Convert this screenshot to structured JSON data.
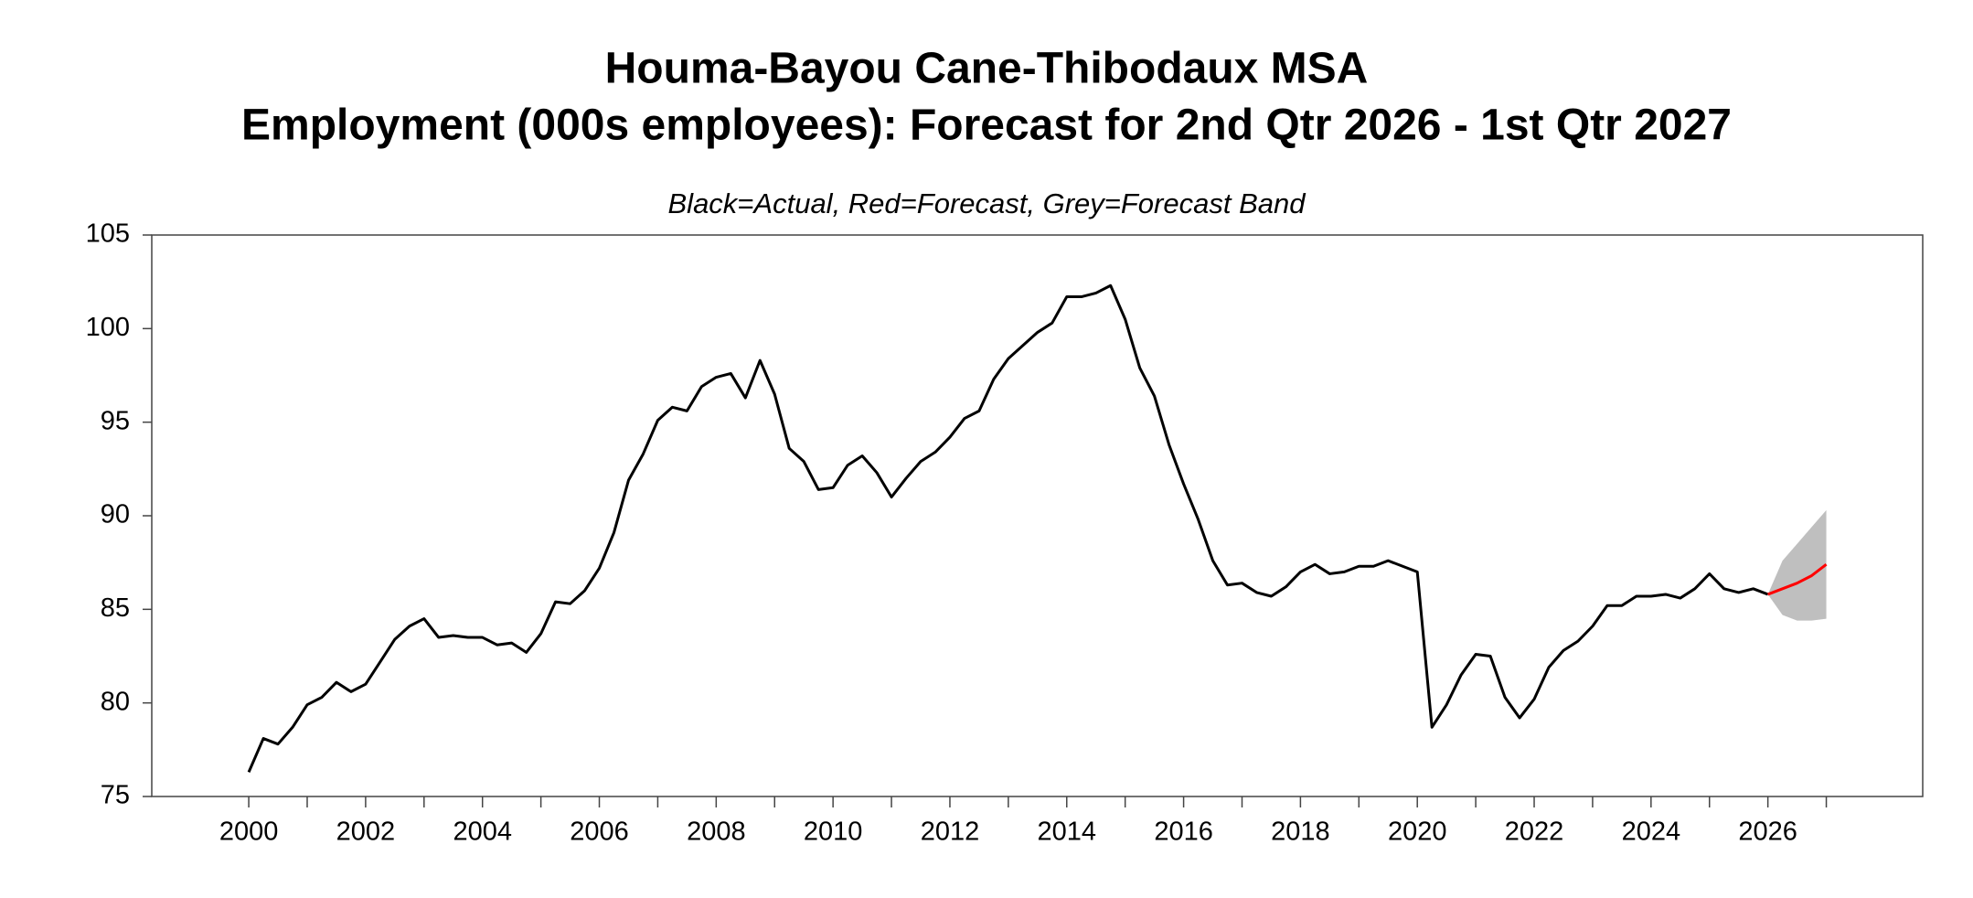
{
  "chart_data": {
    "type": "line",
    "title": "Houma-Bayou Cane-Thibodaux MSA",
    "subtitle": "Employment (000s employees): Forecast for 2nd Qtr 2026 - 1st Qtr 2027",
    "note": "Black=Actual, Red=Forecast, Grey=Forecast Band",
    "xlim": [
      1998.34,
      2028.65
    ],
    "ylim": [
      75,
      105
    ],
    "xticks": [
      2000,
      2002,
      2004,
      2006,
      2008,
      2010,
      2012,
      2014,
      2016,
      2018,
      2020,
      2022,
      2024,
      2026
    ],
    "xminor_ticks": [
      2001,
      2003,
      2005,
      2007,
      2009,
      2011,
      2013,
      2015,
      2017,
      2019,
      2021,
      2023,
      2025,
      2027
    ],
    "yticks": [
      75,
      80,
      85,
      90,
      95,
      100,
      105
    ],
    "grid": false,
    "band": {
      "color": "#bfbfbf",
      "x": [
        2026,
        2026.25,
        2026.5,
        2026.75,
        2027
      ],
      "lower": [
        85.8,
        84.7,
        84.4,
        84.4,
        84.5
      ],
      "upper": [
        85.8,
        87.6,
        88.5,
        89.4,
        90.3
      ]
    },
    "series": [
      {
        "color": "#000000",
        "x": [
          2000,
          2000.25,
          2000.5,
          2000.75,
          2001,
          2001.25,
          2001.5,
          2001.75,
          2002,
          2002.25,
          2002.5,
          2002.75,
          2003,
          2003.25,
          2003.5,
          2003.75,
          2004,
          2004.25,
          2004.5,
          2004.75,
          2005,
          2005.25,
          2005.5,
          2005.75,
          2006,
          2006.25,
          2006.5,
          2006.75,
          2007,
          2007.25,
          2007.5,
          2007.75,
          2008,
          2008.25,
          2008.5,
          2008.75,
          2009,
          2009.25,
          2009.5,
          2009.75,
          2010,
          2010.25,
          2010.5,
          2010.75,
          2011,
          2011.25,
          2011.5,
          2011.75,
          2012,
          2012.25,
          2012.5,
          2012.75,
          2013,
          2013.25,
          2013.5,
          2013.75,
          2014,
          2014.25,
          2014.5,
          2014.75,
          2015,
          2015.25,
          2015.5,
          2015.75,
          2016,
          2016.25,
          2016.5,
          2016.75,
          2017,
          2017.25,
          2017.5,
          2017.75,
          2018,
          2018.25,
          2018.5,
          2018.75,
          2019,
          2019.25,
          2019.5,
          2019.75,
          2020,
          2020.25,
          2020.5,
          2020.75,
          2021,
          2021.25,
          2021.5,
          2021.75,
          2022,
          2022.25,
          2022.5,
          2022.75,
          2023,
          2023.25,
          2023.5,
          2023.75,
          2024,
          2024.25,
          2024.5,
          2024.75,
          2025,
          2025.25,
          2025.5,
          2025.75,
          2026
        ],
        "values": [
          76.3,
          78.1,
          77.8,
          78.7,
          79.9,
          80.3,
          81.1,
          80.6,
          81.0,
          82.2,
          83.4,
          84.1,
          84.5,
          83.5,
          83.6,
          83.5,
          83.5,
          83.1,
          83.2,
          82.7,
          83.7,
          85.4,
          85.3,
          86.0,
          87.2,
          89.1,
          91.9,
          93.3,
          95.1,
          95.8,
          95.6,
          96.9,
          97.4,
          97.6,
          96.3,
          98.3,
          96.5,
          93.6,
          92.9,
          91.4,
          91.5,
          92.7,
          93.2,
          92.3,
          91.0,
          92.0,
          92.9,
          93.4,
          94.2,
          95.2,
          95.6,
          97.3,
          98.4,
          99.1,
          99.8,
          100.3,
          101.7,
          101.7,
          101.9,
          102.3,
          100.5,
          97.9,
          96.4,
          93.8,
          91.7,
          89.8,
          87.6,
          86.3,
          86.4,
          85.9,
          85.7,
          86.2,
          87.0,
          87.4,
          86.9,
          87.0,
          87.3,
          87.3,
          87.6,
          87.3,
          87.0,
          78.7,
          79.9,
          81.5,
          82.6,
          82.5,
          80.3,
          79.2,
          80.2,
          81.9,
          82.8,
          83.3,
          84.1,
          85.2,
          85.2,
          85.7,
          85.7,
          85.8,
          85.6,
          86.1,
          86.9,
          86.1,
          85.9,
          86.1,
          85.8
        ]
      },
      {
        "color": "#ff0000",
        "x": [
          2026,
          2026.25,
          2026.5,
          2026.75,
          2027
        ],
        "values": [
          85.8,
          86.1,
          86.4,
          86.8,
          87.4
        ]
      }
    ]
  }
}
